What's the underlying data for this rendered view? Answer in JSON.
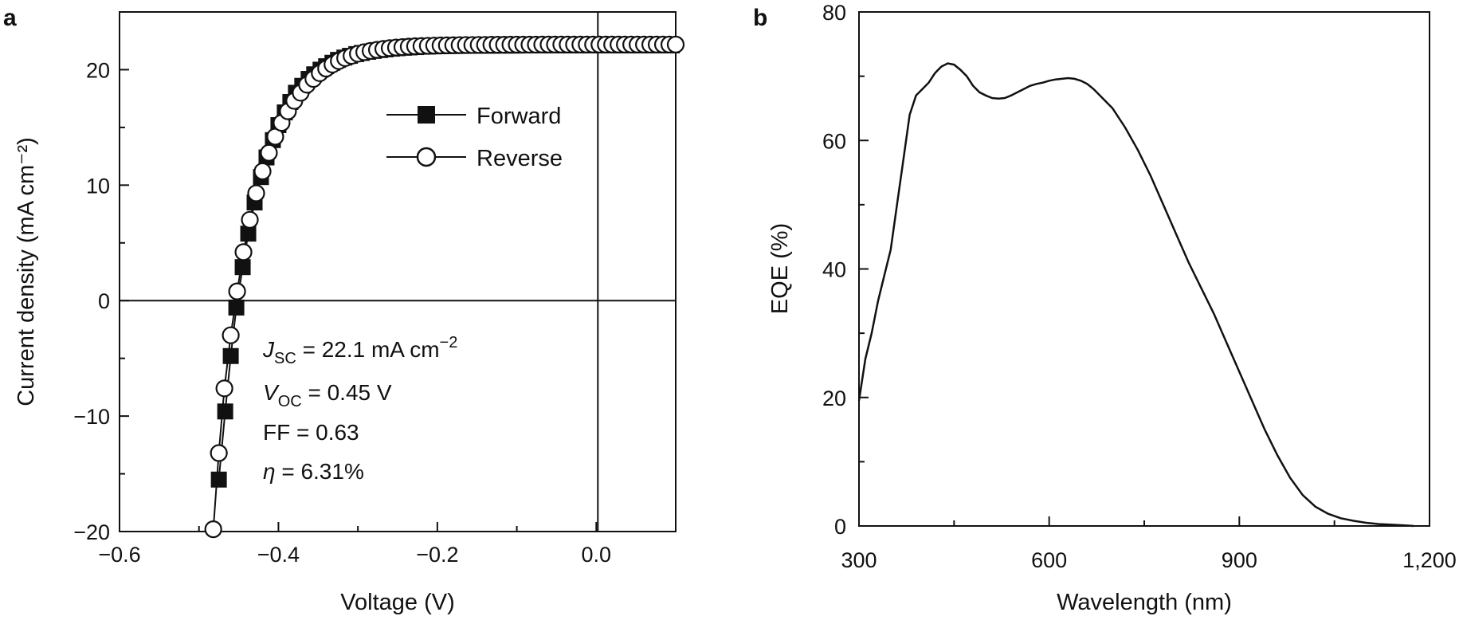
{
  "chart_data": [
    {
      "panel": "a",
      "type": "scatter",
      "xlabel": "Voltage (V)",
      "ylabel": "Current density (mA cm⁻²)",
      "xlim": [
        -0.6,
        0.1
      ],
      "ylim": [
        -20,
        25
      ],
      "xticks": [
        {
          "v": -0.6,
          "label": "−0.6"
        },
        {
          "v": -0.4,
          "label": "−0.4"
        },
        {
          "v": -0.2,
          "label": "−0.2"
        },
        {
          "v": 0.0,
          "label": "0.0"
        }
      ],
      "yticks": [
        {
          "v": -20,
          "label": "−20"
        },
        {
          "v": -10,
          "label": "−10"
        },
        {
          "v": 0,
          "label": "0"
        },
        {
          "v": 10,
          "label": "10"
        },
        {
          "v": 20,
          "label": "20"
        }
      ],
      "reference_lines": {
        "x": 0,
        "y": 0
      },
      "legend": {
        "position": "top-right"
      },
      "annotations": [
        {
          "prefix": "J",
          "subscript": "SC",
          "rest": " = 22.1 mA cm",
          "superscript": "−2"
        },
        {
          "prefix": "V",
          "subscript": "OC",
          "rest": " = 0.45 V",
          "superscript": ""
        },
        {
          "prefix": "",
          "subscript": "",
          "rest": "FF = 0.63",
          "superscript": ""
        },
        {
          "prefix": "η",
          "subscript": "",
          "rest": " = 6.31%",
          "superscript": ""
        }
      ],
      "series": [
        {
          "name": "Forward",
          "marker": "filled-square",
          "points": [
            [
              -0.475,
              -15.5
            ],
            [
              -0.467,
              -9.6
            ],
            [
              -0.46,
              -4.8
            ],
            [
              -0.453,
              -0.6
            ],
            [
              -0.445,
              2.9
            ],
            [
              -0.438,
              5.8
            ],
            [
              -0.43,
              8.5
            ],
            [
              -0.422,
              10.7
            ],
            [
              -0.415,
              12.4
            ],
            [
              -0.407,
              13.9
            ],
            [
              -0.4,
              15.2
            ],
            [
              -0.392,
              16.3
            ],
            [
              -0.385,
              17.2
            ],
            [
              -0.378,
              18.0
            ],
            [
              -0.37,
              18.6
            ],
            [
              -0.362,
              19.2
            ],
            [
              -0.355,
              19.6
            ],
            [
              -0.347,
              20.0
            ],
            [
              -0.34,
              20.3
            ],
            [
              -0.332,
              20.6
            ],
            [
              -0.325,
              20.85
            ],
            [
              -0.317,
              21.05
            ],
            [
              -0.31,
              21.2
            ],
            [
              -0.302,
              21.35
            ],
            [
              -0.295,
              21.45
            ],
            [
              -0.287,
              21.55
            ],
            [
              -0.28,
              21.63
            ],
            [
              -0.272,
              21.7
            ],
            [
              -0.265,
              21.76
            ],
            [
              -0.257,
              21.82
            ],
            [
              -0.25,
              21.86
            ],
            [
              -0.242,
              21.9
            ],
            [
              -0.235,
              21.93
            ],
            [
              -0.227,
              21.96
            ],
            [
              -0.22,
              21.99
            ],
            [
              -0.212,
              22.0
            ],
            [
              -0.205,
              22.02
            ],
            [
              -0.197,
              22.03
            ],
            [
              -0.19,
              22.04
            ],
            [
              -0.182,
              22.05
            ],
            [
              -0.175,
              22.06
            ],
            [
              -0.167,
              22.06
            ],
            [
              -0.16,
              22.07
            ],
            [
              -0.152,
              22.07
            ],
            [
              -0.145,
              22.08
            ],
            [
              -0.137,
              22.08
            ],
            [
              -0.13,
              22.08
            ],
            [
              -0.122,
              22.09
            ],
            [
              -0.115,
              22.09
            ],
            [
              -0.107,
              22.09
            ],
            [
              -0.1,
              22.09
            ],
            [
              -0.092,
              22.1
            ],
            [
              -0.085,
              22.1
            ],
            [
              -0.077,
              22.1
            ],
            [
              -0.07,
              22.1
            ],
            [
              -0.062,
              22.1
            ],
            [
              -0.055,
              22.1
            ],
            [
              -0.047,
              22.1
            ],
            [
              -0.04,
              22.1
            ],
            [
              -0.032,
              22.1
            ],
            [
              -0.025,
              22.1
            ],
            [
              -0.017,
              22.1
            ],
            [
              -0.01,
              22.1
            ],
            [
              -0.002,
              22.1
            ],
            [
              0.005,
              22.1
            ],
            [
              0.013,
              22.1
            ],
            [
              0.02,
              22.1
            ],
            [
              0.028,
              22.1
            ],
            [
              0.035,
              22.1
            ],
            [
              0.043,
              22.1
            ],
            [
              0.05,
              22.1
            ],
            [
              0.058,
              22.1
            ],
            [
              0.065,
              22.1
            ],
            [
              0.073,
              22.1
            ],
            [
              0.08,
              22.1
            ],
            [
              0.088,
              22.1
            ],
            [
              0.095,
              22.1
            ]
          ]
        },
        {
          "name": "Reverse",
          "marker": "open-circle",
          "points": [
            [
              -0.482,
              -19.8
            ],
            [
              -0.475,
              -13.2
            ],
            [
              -0.468,
              -7.6
            ],
            [
              -0.46,
              -3.0
            ],
            [
              -0.452,
              0.8
            ],
            [
              -0.444,
              4.2
            ],
            [
              -0.436,
              7.0
            ],
            [
              -0.428,
              9.3
            ],
            [
              -0.42,
              11.2
            ],
            [
              -0.412,
              12.8
            ],
            [
              -0.404,
              14.2
            ],
            [
              -0.396,
              15.4
            ],
            [
              -0.388,
              16.4
            ],
            [
              -0.38,
              17.3
            ],
            [
              -0.372,
              18.0
            ],
            [
              -0.364,
              18.7
            ],
            [
              -0.356,
              19.2
            ],
            [
              -0.348,
              19.7
            ],
            [
              -0.34,
              20.1
            ],
            [
              -0.332,
              20.45
            ],
            [
              -0.324,
              20.75
            ],
            [
              -0.316,
              21.0
            ],
            [
              -0.308,
              21.2
            ],
            [
              -0.3,
              21.38
            ],
            [
              -0.292,
              21.52
            ],
            [
              -0.284,
              21.63
            ],
            [
              -0.276,
              21.72
            ],
            [
              -0.268,
              21.8
            ],
            [
              -0.26,
              21.87
            ],
            [
              -0.252,
              21.92
            ],
            [
              -0.244,
              21.96
            ],
            [
              -0.236,
              22.0
            ],
            [
              -0.228,
              22.03
            ],
            [
              -0.22,
              22.05
            ],
            [
              -0.212,
              22.07
            ],
            [
              -0.204,
              22.09
            ],
            [
              -0.196,
              22.1
            ],
            [
              -0.188,
              22.11
            ],
            [
              -0.18,
              22.12
            ],
            [
              -0.172,
              22.13
            ],
            [
              -0.164,
              22.14
            ],
            [
              -0.156,
              22.14
            ],
            [
              -0.148,
              22.15
            ],
            [
              -0.14,
              22.15
            ],
            [
              -0.132,
              22.16
            ],
            [
              -0.124,
              22.16
            ],
            [
              -0.116,
              22.16
            ],
            [
              -0.108,
              22.17
            ],
            [
              -0.1,
              22.17
            ],
            [
              -0.092,
              22.17
            ],
            [
              -0.084,
              22.17
            ],
            [
              -0.076,
              22.17
            ],
            [
              -0.068,
              22.18
            ],
            [
              -0.06,
              22.18
            ],
            [
              -0.052,
              22.18
            ],
            [
              -0.044,
              22.18
            ],
            [
              -0.036,
              22.18
            ],
            [
              -0.028,
              22.18
            ],
            [
              -0.02,
              22.18
            ],
            [
              -0.012,
              22.18
            ],
            [
              -0.004,
              22.18
            ],
            [
              0.004,
              22.18
            ],
            [
              0.012,
              22.18
            ],
            [
              0.02,
              22.18
            ],
            [
              0.028,
              22.18
            ],
            [
              0.036,
              22.18
            ],
            [
              0.044,
              22.18
            ],
            [
              0.052,
              22.18
            ],
            [
              0.06,
              22.18
            ],
            [
              0.068,
              22.18
            ],
            [
              0.076,
              22.18
            ],
            [
              0.084,
              22.18
            ],
            [
              0.092,
              22.18
            ],
            [
              0.1,
              22.18
            ]
          ]
        }
      ]
    },
    {
      "panel": "b",
      "type": "line",
      "xlabel": "Wavelength (nm)",
      "ylabel": "EQE (%)",
      "xlim": [
        300,
        1200
      ],
      "ylim": [
        0,
        80
      ],
      "xticks": [
        {
          "v": 300,
          "label": "300"
        },
        {
          "v": 600,
          "label": "600"
        },
        {
          "v": 900,
          "label": "900"
        },
        {
          "v": 1200,
          "label": "1,200"
        }
      ],
      "yticks": [
        {
          "v": 0,
          "label": "0"
        },
        {
          "v": 20,
          "label": "20"
        },
        {
          "v": 40,
          "label": "40"
        },
        {
          "v": 60,
          "label": "60"
        },
        {
          "v": 80,
          "label": "80"
        }
      ],
      "minor_xticks": [
        450,
        750,
        1050
      ],
      "minor_yticks": [
        10,
        30,
        50,
        70
      ],
      "series": [
        {
          "x": [
            300,
            310,
            320,
            330,
            340,
            350,
            360,
            370,
            380,
            390,
            400,
            410,
            420,
            430,
            440,
            450,
            460,
            470,
            480,
            490,
            500,
            510,
            520,
            530,
            540,
            550,
            560,
            570,
            580,
            590,
            600,
            610,
            620,
            630,
            640,
            650,
            660,
            670,
            680,
            690,
            700,
            720,
            740,
            760,
            780,
            800,
            820,
            840,
            860,
            880,
            900,
            920,
            940,
            960,
            980,
            1000,
            1020,
            1040,
            1060,
            1080,
            1100,
            1120,
            1140,
            1160,
            1175
          ],
          "y": [
            19.5,
            26,
            30,
            35,
            39,
            43,
            50,
            57,
            64,
            67,
            68,
            69,
            70.5,
            71.5,
            72,
            71.8,
            71,
            70,
            68.5,
            67.5,
            67,
            66.6,
            66.5,
            66.6,
            67,
            67.5,
            68,
            68.5,
            68.8,
            69,
            69.3,
            69.5,
            69.6,
            69.7,
            69.6,
            69.3,
            68.8,
            68,
            67,
            66,
            65,
            62,
            58.5,
            54.5,
            50,
            45.5,
            41,
            37,
            33,
            28.5,
            24,
            19.5,
            15,
            11,
            7.5,
            4.8,
            3.0,
            1.9,
            1.2,
            0.8,
            0.5,
            0.3,
            0.2,
            0.1,
            0
          ]
        }
      ]
    }
  ]
}
